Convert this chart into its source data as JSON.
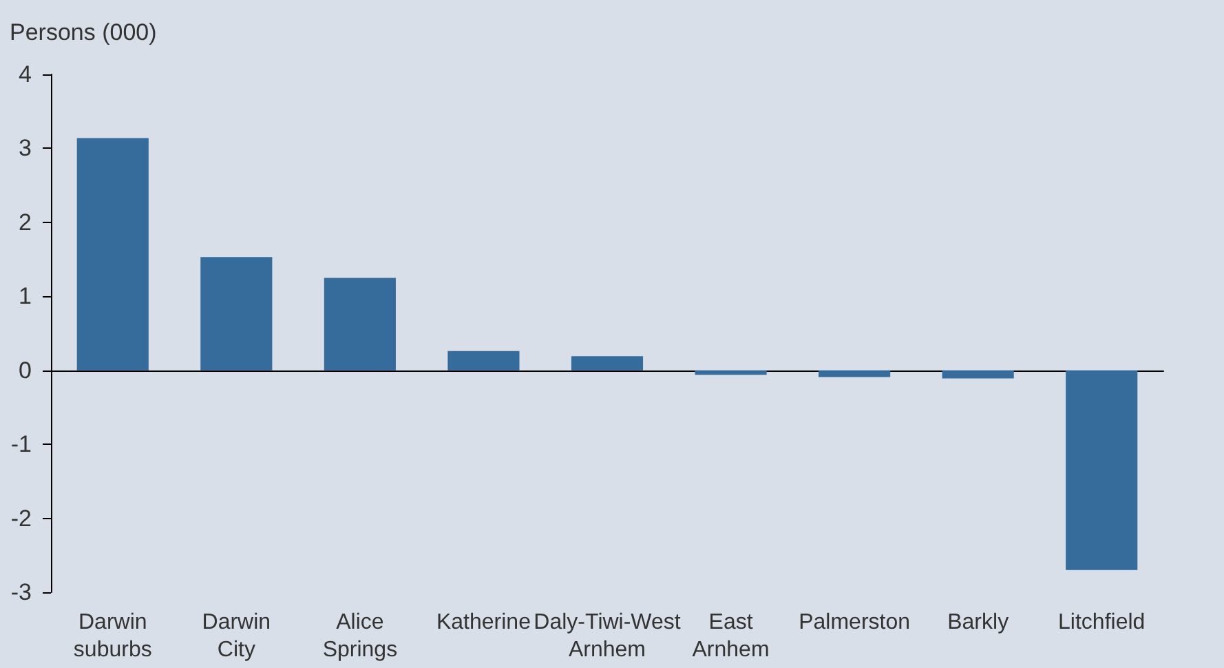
{
  "chart_data": {
    "type": "bar",
    "ylabel": "Persons (000)",
    "categories": [
      "Darwin suburbs",
      "Darwin City",
      "Alice Springs",
      "Katherine",
      "Daly-Tiwi-West Arnhem",
      "East Arnhem",
      "Palmerston",
      "Barkly",
      "Litchfield"
    ],
    "values": [
      3.14,
      1.53,
      1.25,
      0.26,
      0.19,
      -0.06,
      -0.09,
      -0.11,
      -2.7
    ],
    "color": "#366c9c",
    "ylim": [
      -3,
      4
    ],
    "yticks": [
      -3,
      -2,
      -1,
      0,
      1,
      2,
      3,
      4
    ]
  }
}
